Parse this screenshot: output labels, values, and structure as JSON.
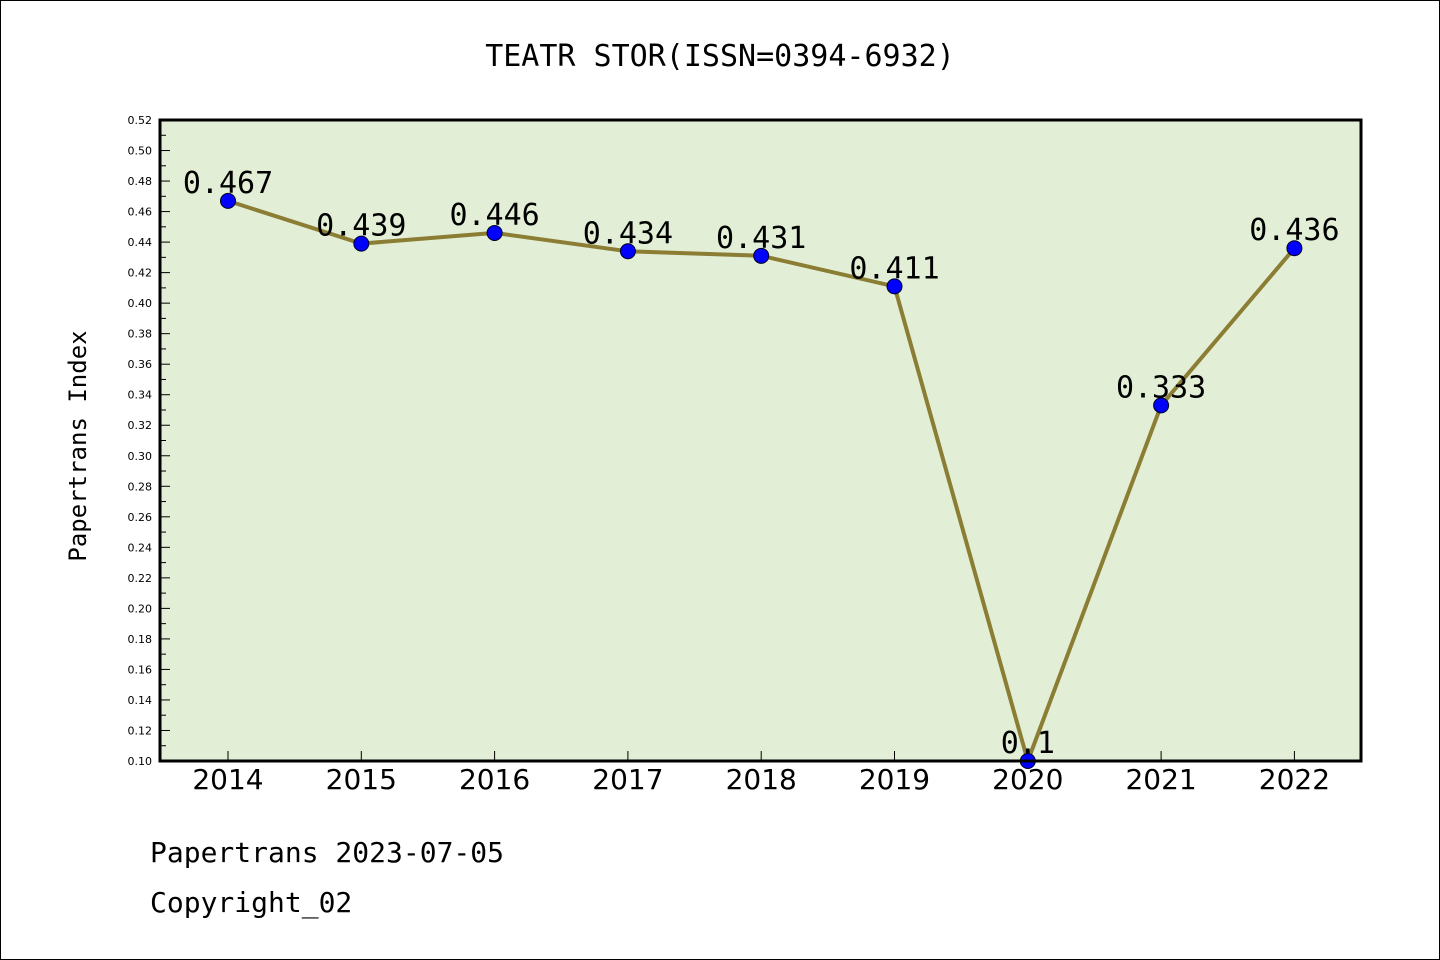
{
  "chart_data": {
    "type": "line",
    "title": "TEATR STOR(ISSN=0394-6932)",
    "xlabel": "",
    "ylabel": "Papertrans Index",
    "categories": [
      "2014",
      "2015",
      "2016",
      "2017",
      "2018",
      "2019",
      "2020",
      "2021",
      "2022"
    ],
    "series": [
      {
        "values": [
          0.467,
          0.439,
          0.446,
          0.434,
          0.431,
          0.411,
          0.1,
          0.333,
          0.436
        ],
        "labels": [
          "0.467",
          "0.439",
          "0.446",
          "0.434",
          "0.431",
          "0.411",
          "0.1",
          "0.333",
          "0.436"
        ]
      }
    ],
    "ylim": [
      0.1,
      0.52
    ],
    "yticks": [
      "0.10",
      "0.12",
      "0.14",
      "0.16",
      "0.18",
      "0.20",
      "0.22",
      "0.24",
      "0.26",
      "0.28",
      "0.30",
      "0.32",
      "0.34",
      "0.36",
      "0.38",
      "0.40",
      "0.42",
      "0.44",
      "0.46",
      "0.48",
      "0.50",
      "0.52"
    ],
    "grid": false,
    "colors": {
      "plot_background": "#e2efd6",
      "line": "#8b7d34",
      "marker": "#0000ff",
      "axis": "#000000"
    }
  },
  "footer": {
    "line1": "Papertrans 2023-07-05",
    "line2": "Copyright_02"
  }
}
